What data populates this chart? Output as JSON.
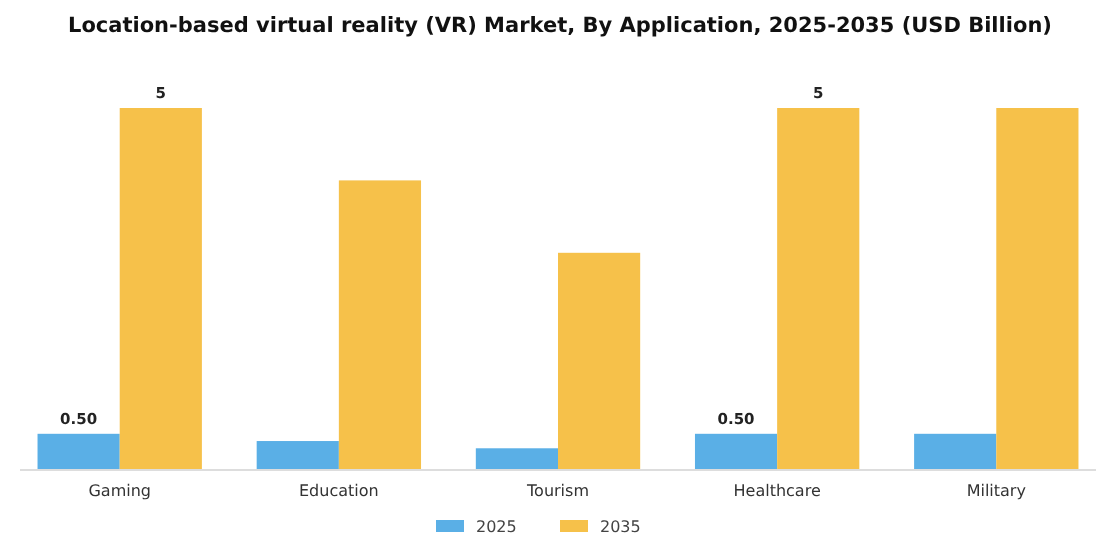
{
  "chart_data": {
    "type": "bar",
    "title": "Location-based virtual reality (VR) Market, By Application, 2025-2035 (USD Billion)",
    "categories": [
      "Gaming",
      "Education",
      "Tourism",
      "Healthcare",
      "Military"
    ],
    "series": [
      {
        "name": "2025",
        "color": "#5aafe6",
        "values": [
          0.5,
          0.4,
          0.3,
          0.5,
          0.5
        ],
        "value_labels": [
          "0.50",
          null,
          null,
          "0.50",
          null
        ]
      },
      {
        "name": "2035",
        "color": "#f6c14a",
        "values": [
          5,
          4,
          3,
          5,
          5
        ],
        "value_labels": [
          "5",
          null,
          null,
          "5",
          null
        ]
      }
    ],
    "legend": "bottom"
  }
}
